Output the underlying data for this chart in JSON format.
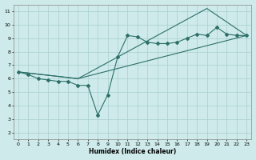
{
  "xlabel": "Humidex (Indice chaleur)",
  "xlim": [
    -0.5,
    23.5
  ],
  "ylim": [
    1.5,
    11.5
  ],
  "xticks": [
    0,
    1,
    2,
    3,
    4,
    5,
    6,
    7,
    8,
    9,
    10,
    11,
    12,
    13,
    14,
    15,
    16,
    17,
    18,
    19,
    20,
    21,
    22,
    23
  ],
  "yticks": [
    2,
    3,
    4,
    5,
    6,
    7,
    8,
    9,
    10,
    11
  ],
  "bg_color": "#ceeaea",
  "line_color": "#2d7068",
  "grid_color": "#aacece",
  "series1_x": [
    0,
    1,
    2,
    3,
    4,
    5,
    6,
    7,
    8,
    9,
    10,
    11,
    12,
    13,
    14,
    15,
    16,
    17,
    18,
    19,
    20,
    21,
    22,
    23
  ],
  "series1_y": [
    6.5,
    6.3,
    6.0,
    5.9,
    5.8,
    5.8,
    5.5,
    5.5,
    3.3,
    4.8,
    7.6,
    9.2,
    9.1,
    8.7,
    8.6,
    8.6,
    8.7,
    9.0,
    9.3,
    9.2,
    9.8,
    9.3,
    9.2,
    9.2
  ],
  "series2_x": [
    0,
    6,
    19,
    23
  ],
  "series2_y": [
    6.5,
    6.0,
    11.2,
    9.2
  ],
  "series3_x": [
    0,
    6,
    23
  ],
  "series3_y": [
    6.5,
    6.0,
    9.2
  ]
}
